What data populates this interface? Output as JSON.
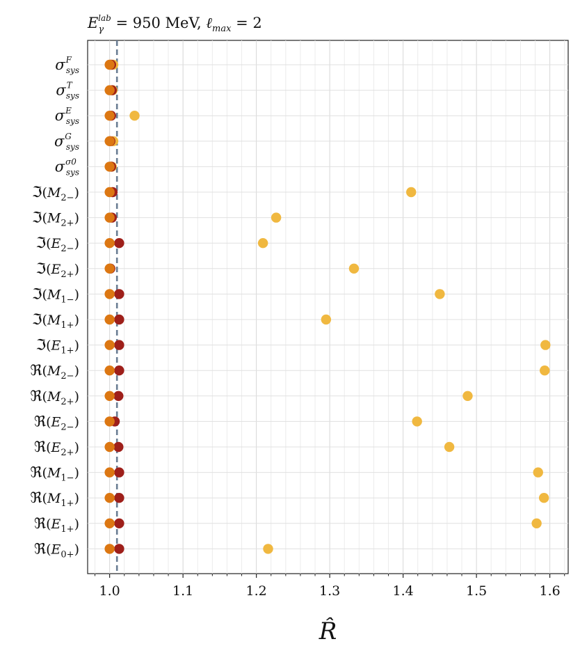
{
  "chart_data": {
    "type": "scatter",
    "title": "E_γ^lab = 950 MeV, ℓ_max = 2",
    "xlabel": "R̂",
    "ylabel": "",
    "xlim": [
      0.97,
      1.625
    ],
    "x_ticks": [
      1.0,
      1.1,
      1.2,
      1.3,
      1.4,
      1.5,
      1.6
    ],
    "x_tick_labels": [
      "1.0",
      "1.1",
      "1.2",
      "1.3",
      "1.4",
      "1.5",
      "1.6"
    ],
    "reference_line": 1.01,
    "grid": true,
    "categories": [
      "σ_sys^F",
      "σ_sys^T",
      "σ_sys^E",
      "σ_sys^G",
      "σ_sys^σ0",
      "ℑ(M2−)",
      "ℑ(M2+)",
      "ℑ(E2−)",
      "ℑ(E2+)",
      "ℑ(M1−)",
      "ℑ(M1+)",
      "ℑ(E1+)",
      "ℜ(M2−)",
      "ℜ(M2+)",
      "ℜ(E2−)",
      "ℜ(E2+)",
      "ℜ(M1−)",
      "ℜ(M1+)",
      "ℜ(E1+)",
      "ℜ(E0+)"
    ],
    "series": [
      {
        "color": "#f0b840",
        "values": [
          1.005,
          1.004,
          1.034,
          1.005,
          1.003,
          1.411,
          1.227,
          1.209,
          1.333,
          1.45,
          1.295,
          1.594,
          1.593,
          1.488,
          1.419,
          1.463,
          1.584,
          1.592,
          1.582,
          1.216
        ]
      },
      {
        "color": "#9e1f1a",
        "values": [
          1.002,
          1.003,
          1.002,
          1.001,
          1.002,
          1.004,
          1.003,
          1.013,
          1.001,
          1.013,
          1.013,
          1.013,
          1.013,
          1.012,
          1.007,
          1.012,
          1.013,
          1.013,
          1.013,
          1.013
        ]
      },
      {
        "color": "#dc7712",
        "values": [
          1.0,
          1.0,
          1.0,
          1.0,
          1.0,
          1.0,
          1.0,
          1.0,
          1.0,
          1.0,
          1.0,
          1.0,
          1.0,
          1.0,
          1.0,
          1.0,
          1.0,
          1.0,
          1.0,
          1.0
        ]
      }
    ]
  }
}
